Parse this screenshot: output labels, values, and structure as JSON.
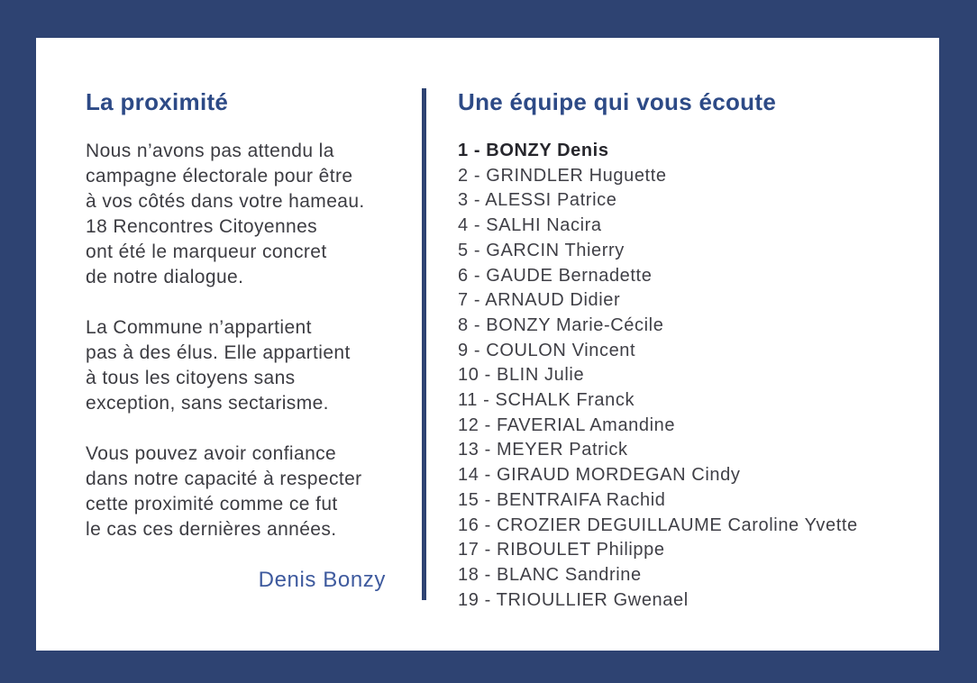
{
  "colors": {
    "border_navy": "#2e4372",
    "card_background": "#ffffff",
    "heading_blue": "#2d4a86",
    "body_text": "#3c3c42",
    "lead_item_text": "#26262c",
    "signature_blue": "#3e5a9e"
  },
  "left_column": {
    "heading": "La proximité",
    "paragraphs": [
      "Nous n’avons pas attendu la\ncampagne électorale pour être\nà vos côtés dans votre hameau.\n18 Rencontres Citoyennes\nont été le marqueur concret\nde notre dialogue.",
      "La Commune n’appartient\npas à des élus. Elle appartient\nà tous les citoyens sans\nexception, sans sectarisme.",
      "Vous pouvez avoir confiance\ndans notre capacité à respecter\ncette proximité comme ce fut\nle cas ces dernières années."
    ],
    "signature": "Denis Bonzy"
  },
  "right_column": {
    "heading": "Une équipe qui vous écoute",
    "items": [
      {
        "label": "1 - BONZY Denis",
        "bold": true
      },
      {
        "label": "2 - GRINDLER Huguette",
        "bold": false
      },
      {
        "label": "3 - ALESSI Patrice",
        "bold": false
      },
      {
        "label": "4 - SALHI Nacira",
        "bold": false
      },
      {
        "label": "5 - GARCIN Thierry",
        "bold": false
      },
      {
        "label": "6 - GAUDE Bernadette",
        "bold": false
      },
      {
        "label": "7 - ARNAUD Didier",
        "bold": false
      },
      {
        "label": "8 - BONZY Marie-Cécile",
        "bold": false
      },
      {
        "label": "9 - COULON Vincent",
        "bold": false
      },
      {
        "label": "10 - BLIN Julie",
        "bold": false
      },
      {
        "label": "11 - SCHALK Franck",
        "bold": false
      },
      {
        "label": "12 - FAVERIAL Amandine",
        "bold": false
      },
      {
        "label": "13 - MEYER Patrick",
        "bold": false
      },
      {
        "label": "14 - GIRAUD MORDEGAN Cindy",
        "bold": false
      },
      {
        "label": "15 - BENTRAIFA Rachid",
        "bold": false
      },
      {
        "label": "16 - CROZIER DEGUILLAUME Caroline Yvette",
        "bold": false
      },
      {
        "label": "17 - RIBOULET Philippe",
        "bold": false
      },
      {
        "label": "18 - BLANC Sandrine",
        "bold": false
      },
      {
        "label": "19 - TRIOULLIER Gwenael",
        "bold": false
      }
    ]
  }
}
